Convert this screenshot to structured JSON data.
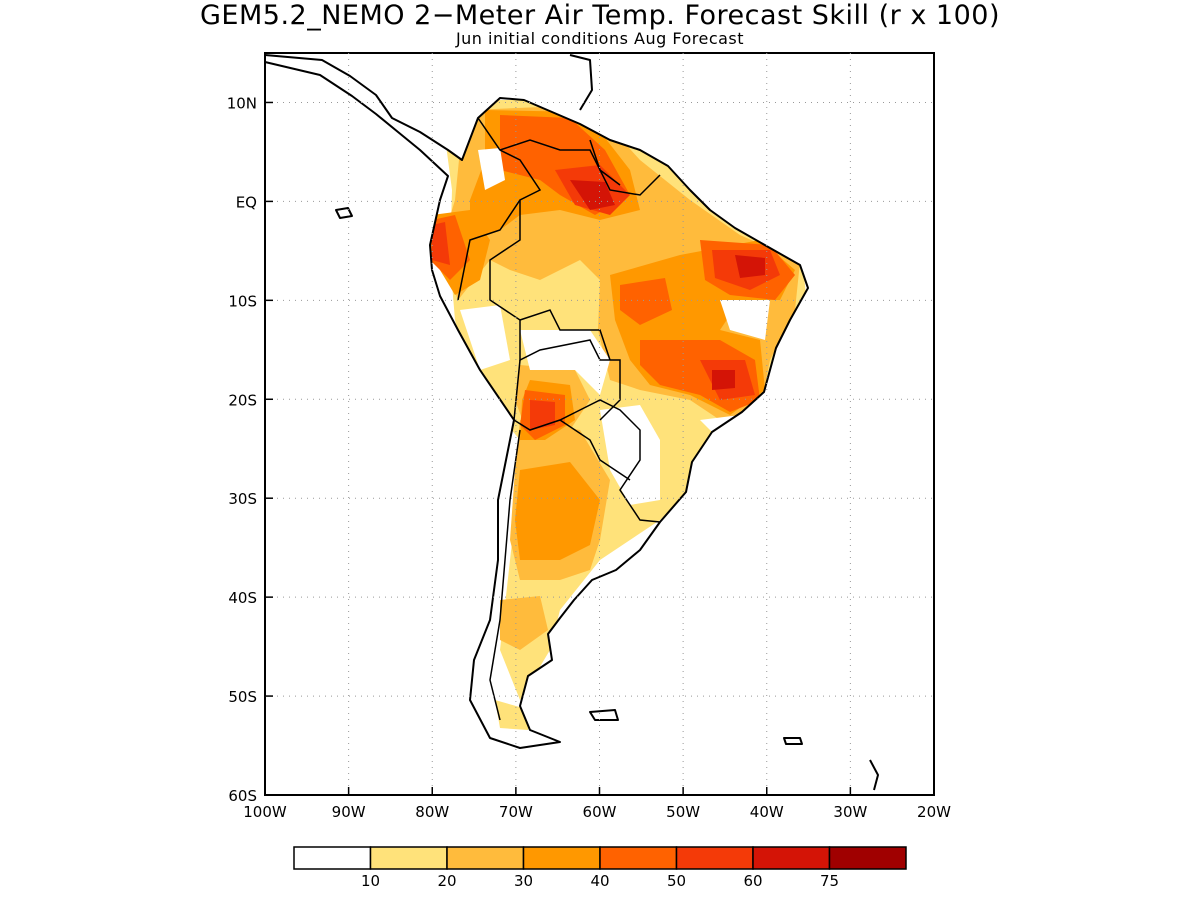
{
  "title": "GEM5.2_NEMO 2−Meter Air Temp. Forecast Skill (r x 100)",
  "subtitle": "Jun initial conditions  Aug Forecast",
  "map": {
    "region": "South America",
    "lon_range": [
      -100,
      -20
    ],
    "lat_range": [
      -60,
      15
    ],
    "grid": "dotted",
    "y_ticks": [
      "10N",
      "EQ",
      "10S",
      "20S",
      "30S",
      "40S",
      "50S",
      "60S"
    ],
    "x_ticks": [
      "100W",
      "90W",
      "80W",
      "70W",
      "60W",
      "50W",
      "40W",
      "30W",
      "20W"
    ]
  },
  "colorbar": {
    "labels": [
      "10",
      "20",
      "30",
      "40",
      "50",
      "60",
      "75"
    ],
    "colors": [
      "#ffffff",
      "#ffe27a",
      "#ffbb3c",
      "#ff9800",
      "#ff6200",
      "#f43a08",
      "#d41406",
      "#a00000"
    ]
  }
}
